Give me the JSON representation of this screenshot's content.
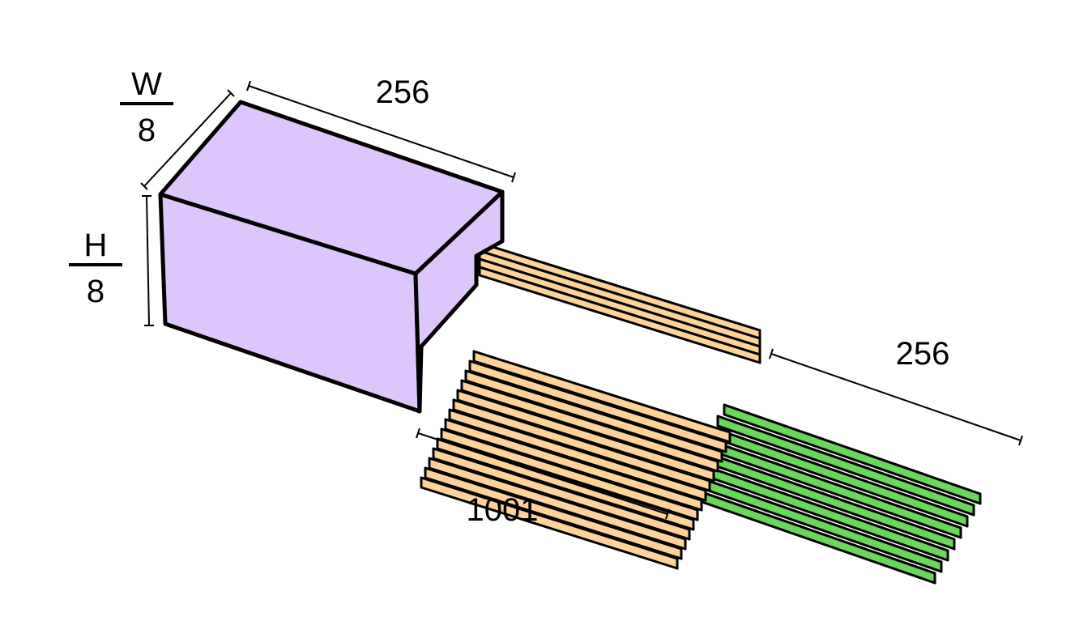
{
  "labels": {
    "w_num": "W",
    "w_den": "8",
    "h_num": "H",
    "h_den": "8",
    "box_length": "256",
    "orange_length": "1001",
    "green_length": "256"
  },
  "colors": {
    "purple": "#dcc6fb",
    "orange": "#fdd39a",
    "green": "#6ad65c",
    "stroke": "#000000"
  }
}
